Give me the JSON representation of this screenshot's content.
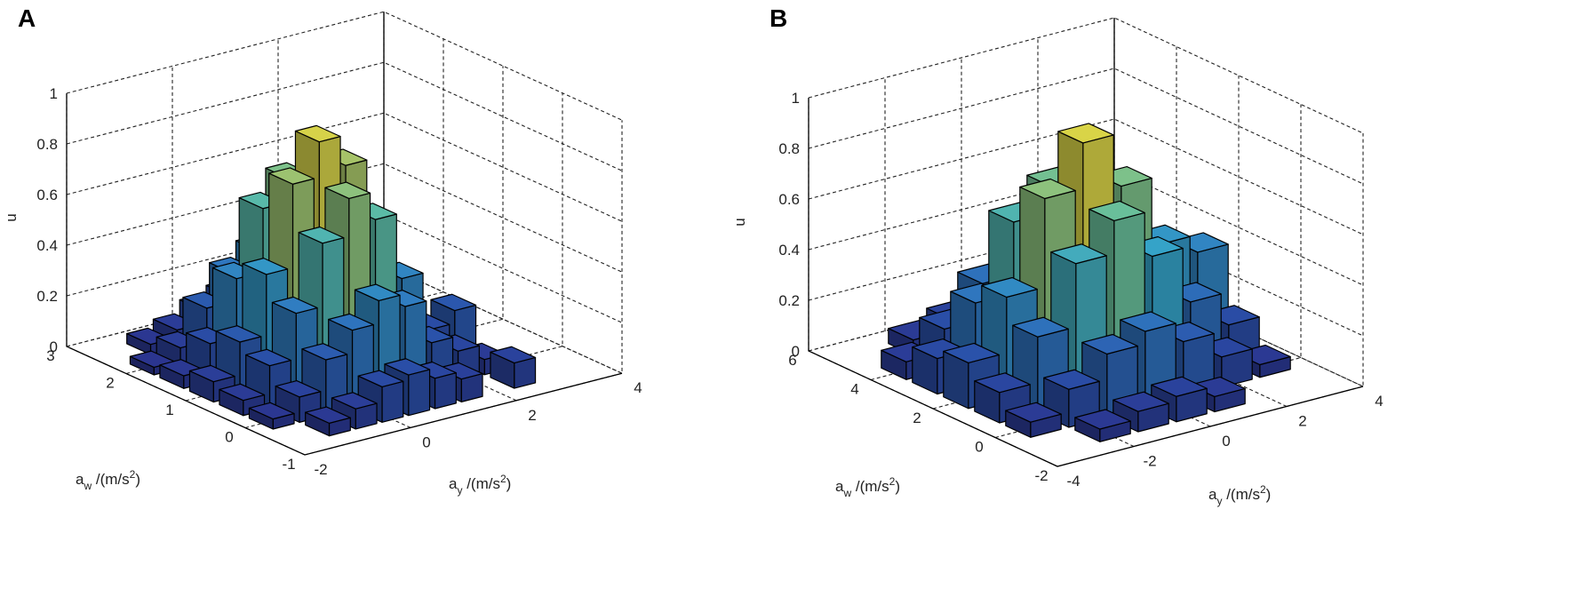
{
  "chart_data": [
    {
      "type": "bar3d",
      "title": "A",
      "zlabel": "u",
      "xlabel": [
        "a",
        "w",
        " /(m/s",
        "2",
        ")"
      ],
      "ylabel": [
        "a",
        "y",
        " /(m/s",
        "2",
        ")"
      ],
      "x": [
        -0.5,
        0,
        0.5,
        1,
        1.5,
        2,
        2.5
      ],
      "y": [
        -1.5,
        -1,
        -0.5,
        0,
        0.5,
        1,
        1.5,
        2,
        2.5
      ],
      "values": [
        [
          null,
          0.05,
          0.08,
          0.14,
          0.16,
          0.12,
          0.09,
          null,
          0.1
        ],
        [
          0.04,
          0.1,
          0.22,
          0.31,
          0.4,
          0.35,
          0.18,
          0.12,
          0.06
        ],
        [
          0.06,
          0.17,
          0.35,
          0.6,
          0.75,
          0.64,
          0.38,
          0.15,
          0.2
        ],
        [
          0.08,
          0.21,
          0.45,
          0.78,
          0.92,
          0.8,
          0.44,
          0.22,
          0.05
        ],
        [
          0.05,
          0.15,
          0.38,
          0.63,
          0.72,
          0.6,
          0.36,
          0.18,
          0.07
        ],
        [
          0.03,
          0.08,
          0.21,
          0.32,
          0.38,
          0.34,
          0.2,
          0.1,
          null
        ],
        [
          null,
          0.04,
          0.07,
          0.12,
          0.15,
          0.11,
          0.06,
          null,
          null
        ]
      ],
      "xlim": [
        -1,
        3
      ],
      "xticks": [
        -1,
        0,
        1,
        2,
        3
      ],
      "ylim": [
        -2,
        4
      ],
      "yticks": [
        -2,
        0,
        2,
        4
      ],
      "zlim": [
        0,
        1
      ],
      "zticks": [
        0,
        0.2,
        0.4,
        0.6,
        0.8,
        1
      ],
      "grid": true,
      "colormap": [
        "#2b2f8a",
        "#2a4fa8",
        "#2f79c0",
        "#35a3c8",
        "#62bfa0",
        "#b7c45a",
        "#f2df3a"
      ]
    },
    {
      "type": "bar3d",
      "title": "B",
      "zlabel": "u",
      "xlabel": [
        "a",
        "w",
        " /(m/s",
        "2",
        ")"
      ],
      "ylabel": [
        "a",
        "y",
        " /(m/s",
        "2",
        ")"
      ],
      "x": [
        -1,
        0,
        1,
        2,
        3,
        4,
        5
      ],
      "y": [
        -3,
        -2,
        -1,
        0,
        1,
        2,
        3
      ],
      "values": [
        [
          null,
          0.05,
          0.08,
          0.1,
          0.06,
          null,
          null
        ],
        [
          0.06,
          0.15,
          0.25,
          0.3,
          0.22,
          0.12,
          0.05
        ],
        [
          0.12,
          0.3,
          0.55,
          0.68,
          0.5,
          0.28,
          0.15
        ],
        [
          0.18,
          0.4,
          0.75,
          0.93,
          0.72,
          0.45,
          0.38
        ],
        [
          0.14,
          0.32,
          0.6,
          0.7,
          0.58,
          0.3,
          0.24
        ],
        [
          0.07,
          0.16,
          0.3,
          0.36,
          0.28,
          0.18,
          0.1
        ],
        [
          null,
          0.06,
          0.1,
          0.12,
          0.09,
          0.05,
          null
        ]
      ],
      "xlim": [
        -2,
        6
      ],
      "xticks": [
        -2,
        0,
        2,
        4,
        6
      ],
      "ylim": [
        -4,
        4
      ],
      "yticks": [
        -4,
        -2,
        0,
        2,
        4
      ],
      "zlim": [
        0,
        1
      ],
      "zticks": [
        0,
        0.2,
        0.4,
        0.6,
        0.8,
        1
      ],
      "grid": true,
      "colormap": [
        "#2b2f8a",
        "#2a4fa8",
        "#2f79c0",
        "#35a3c8",
        "#62bfa0",
        "#b7c45a",
        "#f2df3a"
      ]
    }
  ]
}
